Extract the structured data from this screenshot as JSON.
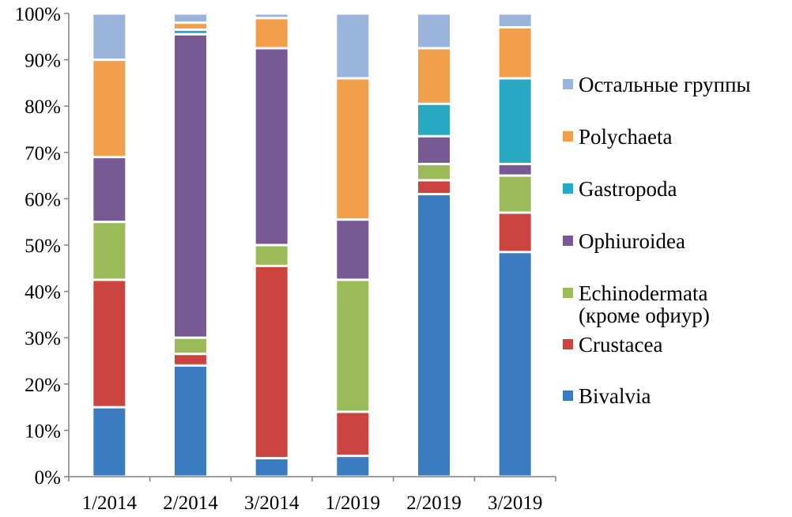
{
  "chart_data": {
    "type": "bar",
    "stacked": true,
    "categories": [
      "1/2014",
      "2/2014",
      "3/2014",
      "1/2019",
      "2/2019",
      "3/2019"
    ],
    "ylim": [
      0,
      100
    ],
    "yticks": [
      "0%",
      "10%",
      "20%",
      "30%",
      "40%",
      "50%",
      "60%",
      "70%",
      "80%",
      "90%",
      "100%"
    ],
    "ytick_values": [
      0,
      10,
      20,
      30,
      40,
      50,
      60,
      70,
      80,
      90,
      100
    ],
    "legend_position": "right",
    "series": [
      {
        "name": "Bivalvia",
        "color": "#3b7bbf",
        "values": [
          15,
          24,
          4,
          4.5,
          61,
          48.5
        ]
      },
      {
        "name": "Crustacea",
        "color": "#cc4440",
        "values": [
          27.5,
          2.5,
          41.5,
          9.5,
          3,
          8.5
        ]
      },
      {
        "name": "Echinodermata (кроме офиур)",
        "legend_lines": [
          "Echinodermata",
          "(кроме офиур)"
        ],
        "color": "#9bbb59",
        "values": [
          12.5,
          3.5,
          4.5,
          28.5,
          3.5,
          8
        ]
      },
      {
        "name": "Ophiuroidea",
        "color": "#775a94",
        "values": [
          14,
          65.5,
          42.5,
          13,
          6,
          2.5
        ]
      },
      {
        "name": "Gastropoda",
        "color": "#2aa9c5",
        "values": [
          0,
          1,
          0,
          0,
          7,
          18.5
        ]
      },
      {
        "name": "Polychaeta",
        "color": "#f29f4b",
        "values": [
          21,
          1.5,
          6.5,
          30.5,
          12,
          11
        ]
      },
      {
        "name": "Остальные группы",
        "color": "#9bb4dc",
        "values": [
          10,
          2,
          1,
          14,
          7.5,
          3
        ]
      }
    ]
  }
}
